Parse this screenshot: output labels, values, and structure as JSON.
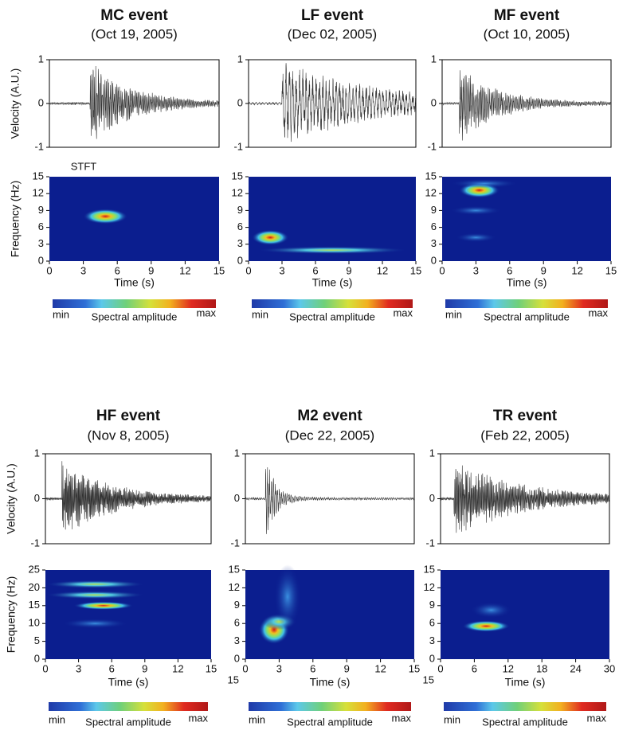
{
  "stft_label": "STFT",
  "panels": [
    {
      "title": "MC event",
      "date": "(Oct 19, 2005)",
      "velocity_axis_label": "Velocity (A.U.)",
      "frequency_axis_label": "Frequency (Hz)",
      "velocity_ticks": [
        "1",
        "0",
        "-1"
      ],
      "frequency_ticks": [
        "15",
        "12",
        "9",
        "6",
        "3",
        "0"
      ],
      "time_ticks": [
        "0",
        "3",
        "6",
        "9",
        "12",
        "15"
      ],
      "time_label": "Time (s)",
      "colorbar": {
        "min": "min",
        "label": "Spectral amplitude",
        "max": "max"
      }
    },
    {
      "title": "LF event",
      "date": "(Dec 02, 2005)",
      "velocity_ticks": [
        "1",
        "0",
        "-1"
      ],
      "frequency_ticks": [
        "15",
        "12",
        "9",
        "6",
        "3",
        "0"
      ],
      "time_ticks": [
        "0",
        "3",
        "6",
        "9",
        "12",
        "15"
      ],
      "time_label": "Time (s)",
      "colorbar": {
        "min": "min",
        "label": "Spectral amplitude",
        "max": "max"
      }
    },
    {
      "title": "MF event",
      "date": "(Oct 10, 2005)",
      "velocity_ticks": [
        "1",
        "0",
        "-1"
      ],
      "frequency_ticks": [
        "15",
        "12",
        "9",
        "6",
        "3",
        "0"
      ],
      "time_ticks": [
        "0",
        "3",
        "6",
        "9",
        "12",
        "15"
      ],
      "time_label": "Time (s)",
      "colorbar": {
        "min": "min",
        "label": "Spectral amplitude",
        "max": "max"
      }
    },
    {
      "title": "HF event",
      "date": "(Nov 8, 2005)",
      "velocity_axis_label": "Velocity (A.U.)",
      "frequency_axis_label": "Frequency (Hz)",
      "velocity_ticks": [
        "1",
        "0",
        "-1"
      ],
      "frequency_ticks": [
        "25",
        "20",
        "15",
        "10",
        "5",
        "0"
      ],
      "time_ticks": [
        "0",
        "3",
        "6",
        "9",
        "12",
        "15"
      ],
      "time_label": "Time (s)",
      "colorbar": {
        "min": "min",
        "label": "Spectral amplitude",
        "max": "max"
      }
    },
    {
      "title": "M2 event",
      "date": "(Dec 22, 2005)",
      "velocity_ticks": [
        "1",
        "0",
        "-1"
      ],
      "frequency_ticks": [
        "15",
        "12",
        "9",
        "6",
        "3",
        "0"
      ],
      "time_ticks": [
        "0",
        "3",
        "6",
        "9",
        "12",
        "15"
      ],
      "time_label": "Time (s)",
      "colorbar": {
        "min": "min",
        "label": "Spectral amplitude",
        "max": "max"
      },
      "edge_label": "15"
    },
    {
      "title": "TR event",
      "date": "(Feb 22, 2005)",
      "velocity_ticks": [
        "1",
        "0",
        "-1"
      ],
      "frequency_ticks": [
        "15",
        "12",
        "9",
        "6",
        "3",
        "0"
      ],
      "time_ticks": [
        "0",
        "6",
        "12",
        "18",
        "24",
        "30"
      ],
      "time_label": "Time (s)",
      "colorbar": {
        "min": "min",
        "label": "Spectral amplitude",
        "max": "max"
      },
      "edge_label": "15"
    }
  ]
}
